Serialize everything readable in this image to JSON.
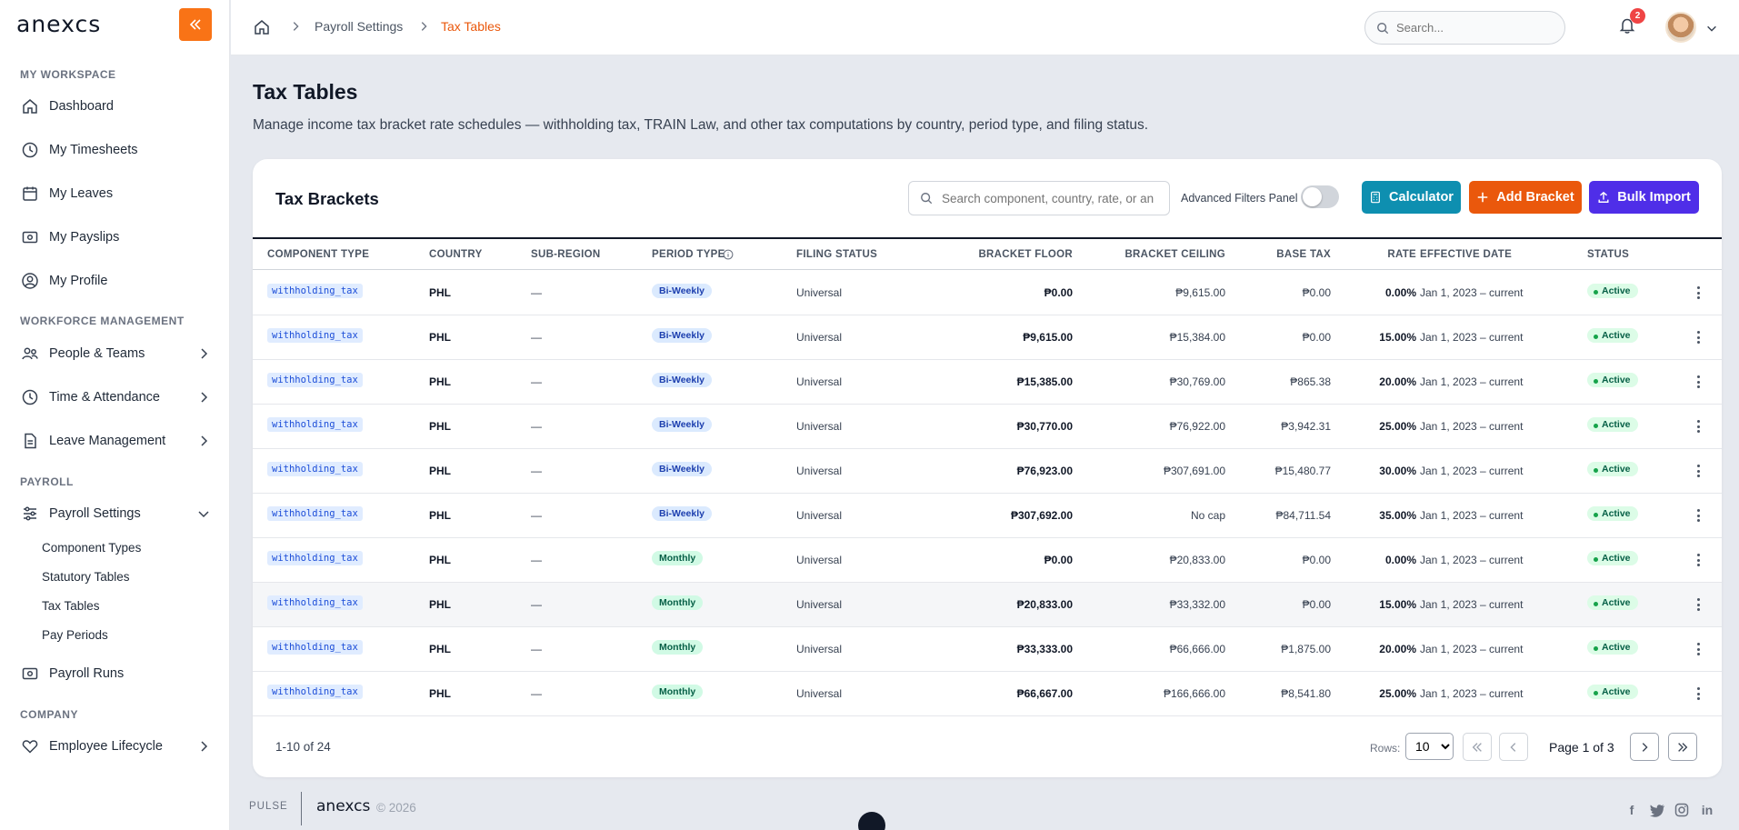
{
  "app": {
    "logo": "anexcs"
  },
  "sidebar": {
    "sections": {
      "my_workspace": "MY WORKSPACE",
      "workforce": "WORKFORCE MANAGEMENT",
      "payroll": "PAYROLL",
      "company": "COMPANY"
    },
    "items": {
      "dashboard": "Dashboard",
      "timesheets": "My Timesheets",
      "leaves": "My Leaves",
      "payslips": "My Payslips",
      "profile": "My Profile",
      "people_teams": "People & Teams",
      "time_attendance": "Time & Attendance",
      "leave_management": "Leave Management",
      "payroll_settings": "Payroll Settings",
      "payroll_runs": "Payroll Runs",
      "employee_lifecycle": "Employee Lifecycle"
    },
    "sub_items": {
      "component_types": "Component Types",
      "statutory_tables": "Statutory Tables",
      "tax_tables": "Tax Tables",
      "pay_periods": "Pay Periods"
    }
  },
  "header": {
    "breadcrumb": [
      "Payroll Settings",
      "Tax Tables"
    ],
    "search_placeholder": "Search...",
    "notification_count": "2"
  },
  "page": {
    "title": "Tax Tables",
    "description": "Manage income tax bracket rate schedules — withholding tax, TRAIN Law, and other tax computations by country, period type, and filing status."
  },
  "card": {
    "title": "Tax Brackets",
    "search_placeholder": "Search component, country, rate, or an",
    "advanced_filters_label": "Advanced Filters Panel",
    "buttons": {
      "calculator": "Calculator",
      "add_bracket": "Add Bracket",
      "bulk_import": "Bulk Import"
    },
    "colors": {
      "calculator": "#0e8fb0",
      "add_bracket": "#ea580c",
      "bulk_import": "#4f2ee8"
    }
  },
  "table": {
    "columns": {
      "component_type": "COMPONENT TYPE",
      "country": "COUNTRY",
      "sub_region": "SUB-REGION",
      "period_type": "PERIOD TYPE",
      "filing_status": "FILING STATUS",
      "bracket_floor": "BRACKET FLOOR",
      "bracket_ceiling": "BRACKET CEILING",
      "base_tax": "BASE TAX",
      "rate": "RATE",
      "effective_date": "EFFECTIVE DATE",
      "status": "STATUS"
    },
    "rows": [
      {
        "component": "withholding_tax",
        "country": "PHL",
        "sub_region": "—",
        "period": "Bi-Weekly",
        "filing": "Universal",
        "floor": "₱0.00",
        "ceiling": "₱9,615.00",
        "base": "₱0.00",
        "rate": "0.00%",
        "effective": "Jan 1, 2023 – current",
        "status": "Active"
      },
      {
        "component": "withholding_tax",
        "country": "PHL",
        "sub_region": "—",
        "period": "Bi-Weekly",
        "filing": "Universal",
        "floor": "₱9,615.00",
        "ceiling": "₱15,384.00",
        "base": "₱0.00",
        "rate": "15.00%",
        "effective": "Jan 1, 2023 – current",
        "status": "Active"
      },
      {
        "component": "withholding_tax",
        "country": "PHL",
        "sub_region": "—",
        "period": "Bi-Weekly",
        "filing": "Universal",
        "floor": "₱15,385.00",
        "ceiling": "₱30,769.00",
        "base": "₱865.38",
        "rate": "20.00%",
        "effective": "Jan 1, 2023 – current",
        "status": "Active"
      },
      {
        "component": "withholding_tax",
        "country": "PHL",
        "sub_region": "—",
        "period": "Bi-Weekly",
        "filing": "Universal",
        "floor": "₱30,770.00",
        "ceiling": "₱76,922.00",
        "base": "₱3,942.31",
        "rate": "25.00%",
        "effective": "Jan 1, 2023 – current",
        "status": "Active"
      },
      {
        "component": "withholding_tax",
        "country": "PHL",
        "sub_region": "—",
        "period": "Bi-Weekly",
        "filing": "Universal",
        "floor": "₱76,923.00",
        "ceiling": "₱307,691.00",
        "base": "₱15,480.77",
        "rate": "30.00%",
        "effective": "Jan 1, 2023 – current",
        "status": "Active"
      },
      {
        "component": "withholding_tax",
        "country": "PHL",
        "sub_region": "—",
        "period": "Bi-Weekly",
        "filing": "Universal",
        "floor": "₱307,692.00",
        "ceiling": "No cap",
        "base": "₱84,711.54",
        "rate": "35.00%",
        "effective": "Jan 1, 2023 – current",
        "status": "Active"
      },
      {
        "component": "withholding_tax",
        "country": "PHL",
        "sub_region": "—",
        "period": "Monthly",
        "filing": "Universal",
        "floor": "₱0.00",
        "ceiling": "₱20,833.00",
        "base": "₱0.00",
        "rate": "0.00%",
        "effective": "Jan 1, 2023 – current",
        "status": "Active"
      },
      {
        "component": "withholding_tax",
        "country": "PHL",
        "sub_region": "—",
        "period": "Monthly",
        "filing": "Universal",
        "floor": "₱20,833.00",
        "ceiling": "₱33,332.00",
        "base": "₱0.00",
        "rate": "15.00%",
        "effective": "Jan 1, 2023 – current",
        "status": "Active"
      },
      {
        "component": "withholding_tax",
        "country": "PHL",
        "sub_region": "—",
        "period": "Monthly",
        "filing": "Universal",
        "floor": "₱33,333.00",
        "ceiling": "₱66,666.00",
        "base": "₱1,875.00",
        "rate": "20.00%",
        "effective": "Jan 1, 2023 – current",
        "status": "Active"
      },
      {
        "component": "withholding_tax",
        "country": "PHL",
        "sub_region": "—",
        "period": "Monthly",
        "filing": "Universal",
        "floor": "₱66,667.00",
        "ceiling": "₱166,666.00",
        "base": "₱8,541.80",
        "rate": "25.00%",
        "effective": "Jan 1, 2023 – current",
        "status": "Active"
      }
    ]
  },
  "pagination": {
    "range": "1-10 of 24",
    "rows_label": "Rows:",
    "rows_value": "10",
    "page_text": "Page 1 of 3"
  },
  "footer": {
    "pulse": "PULSE",
    "logo": "anexcs",
    "copyright": "© 2026",
    "social_icons": [
      "facebook-icon",
      "twitter-icon",
      "instagram-icon",
      "linkedin-icon"
    ]
  }
}
